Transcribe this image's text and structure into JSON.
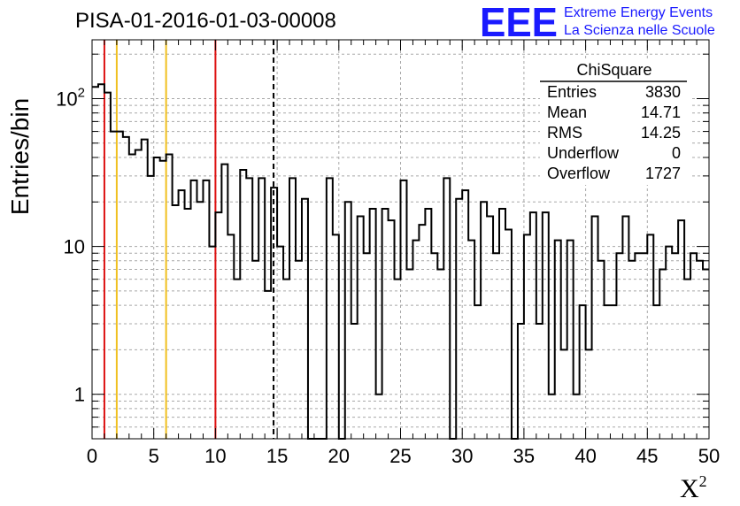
{
  "chart_data": {
    "type": "bar",
    "title": "PISA-01-2016-01-03-00008",
    "xlabel": "X",
    "xlabel_sup": "2",
    "ylabel": "Entries/bin",
    "xlim": [
      0,
      50
    ],
    "ylim": [
      0.5,
      250
    ],
    "log_y": true,
    "grid": true,
    "x_ticks": [
      0,
      5,
      10,
      15,
      20,
      25,
      30,
      35,
      40,
      45,
      50
    ],
    "y_ticks": [
      {
        "value": 1,
        "base": "1",
        "exp": ""
      },
      {
        "value": 10,
        "base": "10",
        "exp": ""
      },
      {
        "value": 100,
        "base": "10",
        "exp": "2"
      }
    ],
    "bin_width": 0.5,
    "values": [
      120,
      125,
      110,
      60,
      60,
      55,
      42,
      45,
      53,
      30,
      40,
      38,
      42,
      19,
      24,
      18,
      28,
      20,
      28,
      10,
      17,
      36,
      12,
      6,
      33,
      29,
      8,
      29,
      5,
      25,
      10,
      6,
      29,
      8,
      21,
      0,
      0,
      0,
      29,
      12,
      0,
      20,
      3,
      16,
      9,
      18,
      1,
      18,
      15,
      6,
      28,
      7,
      11,
      14,
      18,
      9,
      7,
      29,
      0,
      21,
      24,
      11,
      4,
      20,
      16,
      9,
      18,
      13,
      0,
      3,
      12,
      17,
      3,
      17,
      1,
      11,
      2,
      11,
      1,
      4,
      2,
      16,
      8,
      4,
      4,
      9,
      16,
      8,
      9,
      9,
      12,
      4,
      7,
      10,
      9,
      15,
      6,
      9,
      8,
      7
    ],
    "vertical_lines": [
      {
        "x": 1,
        "color": "#dd1111",
        "style": "solid"
      },
      {
        "x": 2,
        "color": "#f0c020",
        "style": "solid"
      },
      {
        "x": 6,
        "color": "#f0c020",
        "style": "solid"
      },
      {
        "x": 10,
        "color": "#dd1111",
        "style": "solid"
      },
      {
        "x": 14.71,
        "color": "#000000",
        "style": "dashed"
      }
    ]
  },
  "logo": {
    "mark": "EEE",
    "line1": "Extreme Energy Events",
    "line2": "La Scienza nelle Scuole"
  },
  "stats_box": {
    "name": "ChiSquare",
    "rows": [
      {
        "label": "Entries",
        "value": "3830"
      },
      {
        "label": "Mean",
        "value": "14.71"
      },
      {
        "label": "RMS",
        "value": "14.25"
      },
      {
        "label": "Underflow",
        "value": "0"
      },
      {
        "label": "Overflow",
        "value": "1727"
      }
    ]
  }
}
